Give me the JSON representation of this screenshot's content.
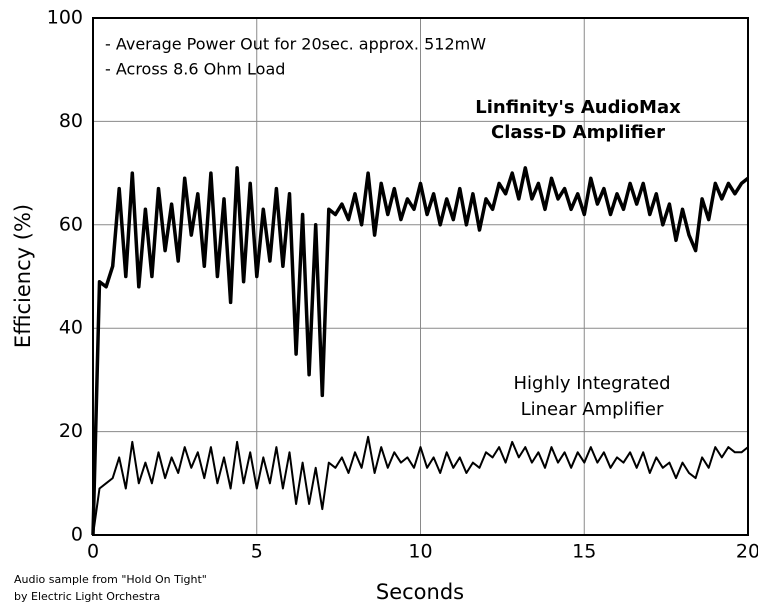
{
  "chart_data": {
    "type": "line",
    "xlabel": "Seconds",
    "ylabel": "Efficiency (%)",
    "xlim": [
      0,
      20
    ],
    "ylim": [
      0,
      100
    ],
    "xticks": [
      0,
      5,
      10,
      15,
      20
    ],
    "yticks": [
      0,
      20,
      40,
      60,
      80,
      100
    ],
    "grid": true,
    "annotations": [
      "- Average Power Out for 20sec. approx. 512mW",
      "- Across 8.6 Ohm Load"
    ],
    "footnote": [
      "Audio sample from \"Hold On Tight\"",
      "by Electric Light Orchestra"
    ],
    "x": [
      0,
      0.2,
      0.4,
      0.6,
      0.8,
      1,
      1.2,
      1.4,
      1.6,
      1.8,
      2,
      2.2,
      2.4,
      2.6,
      2.8,
      3,
      3.2,
      3.4,
      3.6,
      3.8,
      4,
      4.2,
      4.4,
      4.6,
      4.8,
      5,
      5.2,
      5.4,
      5.6,
      5.8,
      6,
      6.2,
      6.4,
      6.6,
      6.8,
      7,
      7.2,
      7.4,
      7.6,
      7.8,
      8,
      8.2,
      8.4,
      8.6,
      8.8,
      9,
      9.2,
      9.4,
      9.6,
      9.8,
      10,
      10.2,
      10.4,
      10.6,
      10.8,
      11,
      11.2,
      11.4,
      11.6,
      11.8,
      12,
      12.2,
      12.4,
      12.6,
      12.8,
      13,
      13.2,
      13.4,
      13.6,
      13.8,
      14,
      14.2,
      14.4,
      14.6,
      14.8,
      15,
      15.2,
      15.4,
      15.6,
      15.8,
      16,
      16.2,
      16.4,
      16.6,
      16.8,
      17,
      17.2,
      17.4,
      17.6,
      17.8,
      18,
      18.2,
      18.4,
      18.6,
      18.8,
      19,
      19.2,
      19.4,
      19.6,
      19.8,
      20
    ],
    "series": [
      {
        "label_lines": [
          "Linfinity's AudioMax",
          "Class-D Amplifier"
        ],
        "color": "#000000",
        "values": [
          0,
          49,
          48,
          52,
          67,
          50,
          70,
          48,
          63,
          50,
          67,
          55,
          64,
          53,
          69,
          58,
          66,
          52,
          70,
          50,
          65,
          45,
          71,
          49,
          68,
          50,
          63,
          53,
          67,
          52,
          66,
          35,
          62,
          31,
          60,
          27,
          63,
          62,
          64,
          61,
          66,
          60,
          70,
          58,
          68,
          62,
          67,
          61,
          65,
          63,
          68,
          62,
          66,
          60,
          65,
          61,
          67,
          60,
          66,
          59,
          65,
          63,
          68,
          66,
          70,
          65,
          71,
          65,
          68,
          63,
          69,
          65,
          67,
          63,
          66,
          62,
          69,
          64,
          67,
          62,
          66,
          63,
          68,
          64,
          68,
          62,
          66,
          60,
          64,
          57,
          63,
          58,
          55,
          65,
          61,
          68,
          65,
          68,
          66,
          68,
          69
        ]
      },
      {
        "label_lines": [
          "Highly Integrated",
          "Linear Amplifier"
        ],
        "color": "#000000",
        "values": [
          0,
          9,
          10,
          11,
          15,
          9,
          18,
          10,
          14,
          10,
          16,
          11,
          15,
          12,
          17,
          13,
          16,
          11,
          17,
          10,
          15,
          9,
          18,
          10,
          16,
          9,
          15,
          10,
          17,
          9,
          16,
          6,
          14,
          6,
          13,
          5,
          14,
          13,
          15,
          12,
          16,
          13,
          19,
          12,
          17,
          13,
          16,
          14,
          15,
          13,
          17,
          13,
          15,
          12,
          16,
          13,
          15,
          12,
          14,
          13,
          16,
          15,
          17,
          14,
          18,
          15,
          17,
          14,
          16,
          13,
          17,
          14,
          16,
          13,
          16,
          14,
          17,
          14,
          16,
          13,
          15,
          14,
          16,
          13,
          16,
          12,
          15,
          13,
          14,
          11,
          14,
          12,
          11,
          15,
          13,
          17,
          15,
          17,
          16,
          16,
          17
        ]
      }
    ]
  }
}
